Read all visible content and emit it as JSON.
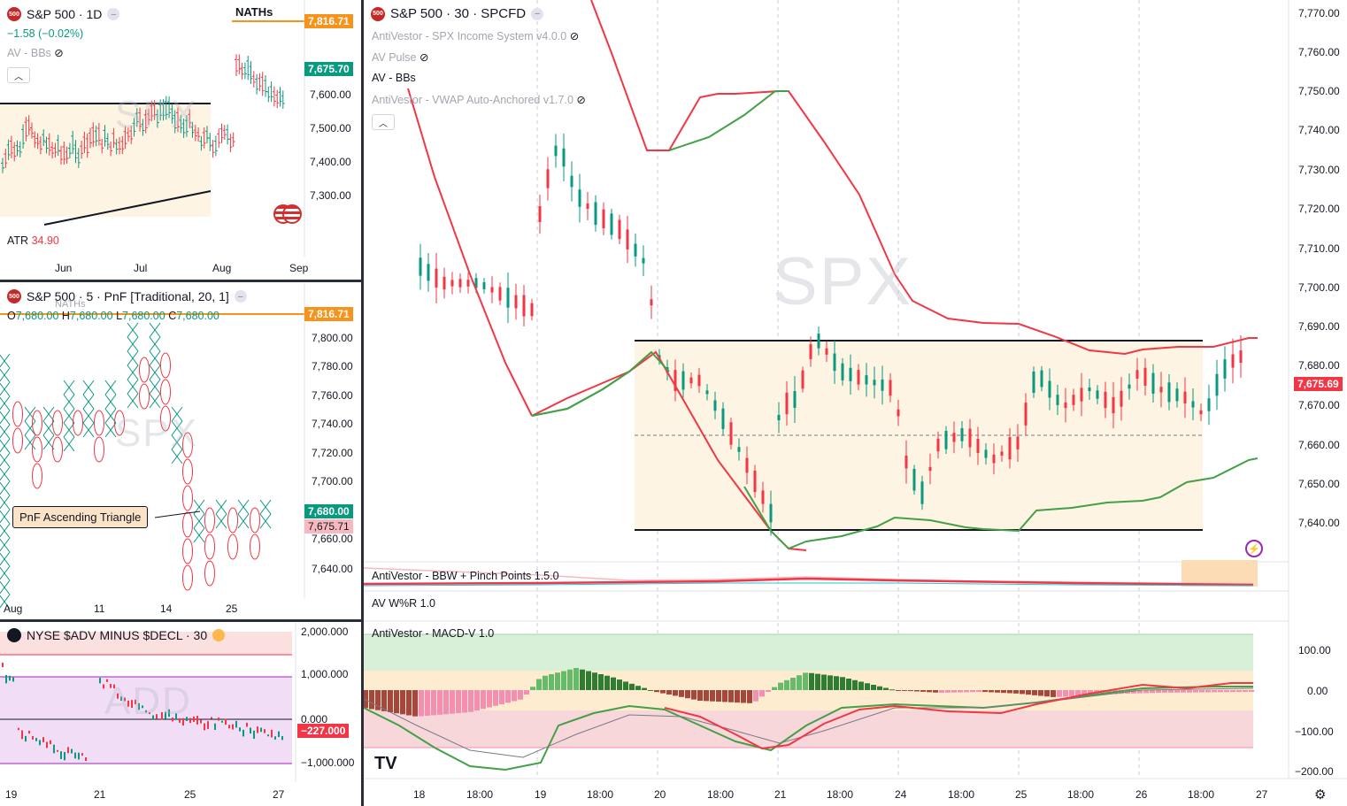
{
  "daily": {
    "title": "S&P 500 · 1D",
    "change": "−1.58 (−0.02%)",
    "indicator": "AV - BBs",
    "atr_label": "ATR",
    "atr_value": "34.90",
    "naths_label": "NATHs",
    "watermark": "SPX",
    "price_high_tag": "7,816.71",
    "price_last_tag": "7,675.70",
    "y_ticks": [
      "7,600.00",
      "7,500.00",
      "7,400.00",
      "7,300.00"
    ],
    "x_ticks": [
      "Jun",
      "Jul",
      "Aug",
      "Sep"
    ],
    "colors": {
      "high_tag": "#f7931a",
      "last_tag": "#089981"
    }
  },
  "pnf": {
    "title": "S&P 500 · 5 · PnF [Traditional, 20, 1]",
    "ohlc": {
      "o_label": "O",
      "o": "7,680.00",
      "h_label": "H",
      "h": "7,680.00",
      "l_label": "L",
      "l": "7,680.00",
      "c_label": "C",
      "c": "7,680.00"
    },
    "watermark": "SPX",
    "naths_label": "NATHs",
    "callout": "PnF Ascending Triangle",
    "price_high_tag": "7,816.71",
    "price_last_tag": "7,680.00",
    "price_other_tag": "7,675.71",
    "y_ticks": [
      "7,800.00",
      "7,780.00",
      "7,760.00",
      "7,740.00",
      "7,720.00",
      "7,700.00",
      "7,660.00",
      "7,640.00"
    ],
    "x_ticks": [
      "Aug",
      "11",
      "14",
      "25"
    ],
    "colors": {
      "x": "#089981",
      "o": "#f23645"
    }
  },
  "breadth": {
    "title": "NYSE $ADV MINUS $DECL · 30",
    "watermark": "ADD",
    "last_tag": "−227.000",
    "y_ticks": [
      "2,000.000",
      "1,000.000",
      "0.000",
      "−1,000.000"
    ],
    "x_ticks": [
      "19",
      "21",
      "25",
      "27"
    ]
  },
  "main": {
    "title": "S&P 500 · 30 · SPCFD",
    "indicators": [
      {
        "label": "AntiVestor - SPX Income System v4.0.0",
        "hidden": true
      },
      {
        "label": "AV Pulse",
        "hidden": true
      },
      {
        "label": "AV - BBs",
        "hidden": false
      },
      {
        "label": "AntiVestor - VWAP Auto-Anchored v1.7.0",
        "hidden": true
      }
    ],
    "watermark": "SPX",
    "last_price_tag": "7,675.69",
    "y_ticks": [
      "7,770.00",
      "7,760.00",
      "7,750.00",
      "7,740.00",
      "7,730.00",
      "7,720.00",
      "7,710.00",
      "7,700.00",
      "7,690.00",
      "7,680.00",
      "7,670.00",
      "7,660.00",
      "7,650.00",
      "7,640.00"
    ],
    "bbw_label": "AntiVestor - BBW + Pinch Points 1.5.0",
    "wr_label": "AV W%R 1.0",
    "macd_label": "AntiVestor - MACD-V 1.0",
    "macd_ticks": [
      "100.00",
      "0.00",
      "−100.00",
      "−200.00"
    ],
    "x_ticks": [
      "18",
      "18:00",
      "19",
      "18:00",
      "20",
      "18:00",
      "21",
      "18:00",
      "24",
      "18:00",
      "25",
      "18:00",
      "26",
      "18:00",
      "27"
    ],
    "colors": {
      "up": "#089981",
      "down": "#f23645",
      "upper_band": "#f23645",
      "lower_band": "#43a047",
      "last_tag": "#f23645"
    }
  }
}
